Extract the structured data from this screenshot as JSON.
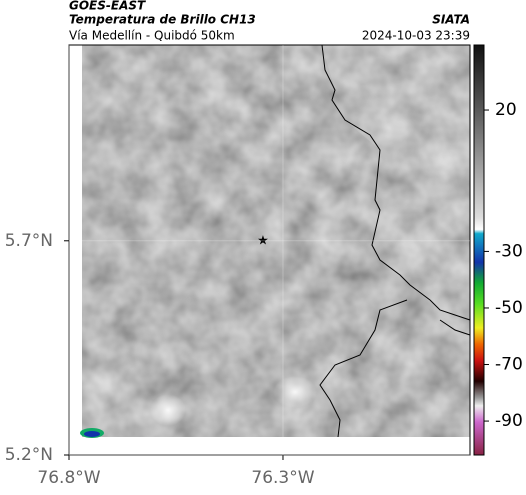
{
  "header": {
    "title": "GOES-EAST",
    "subtitle": "Temperatura de Brillo CH13",
    "route": "Vía Medellín - Quibdó 50km",
    "source": "SIATA",
    "timestamp": "2024-10-03 23:39"
  },
  "map": {
    "lon_lim": [
      -76.8,
      -75.863
    ],
    "lat_lim": [
      5.2,
      6.157
    ],
    "lon_ticks": [
      {
        "value": -76.8,
        "label": "76.8°W"
      },
      {
        "value": -76.3,
        "label": "76.3°W"
      }
    ],
    "lat_ticks": [
      {
        "value": 5.2,
        "label": "5.2°N"
      },
      {
        "value": 5.7,
        "label": "5.7°N"
      }
    ]
  },
  "colorbar": {
    "lim": [
      -102,
      43
    ],
    "ticks": [
      20,
      -30,
      -50,
      -70,
      -90
    ]
  }
}
